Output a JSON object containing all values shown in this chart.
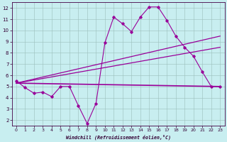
{
  "xlabel": "Windchill (Refroidissement éolien,°C)",
  "bg_color": "#c8eef0",
  "line_color": "#990099",
  "xlim": [
    -0.5,
    23.5
  ],
  "ylim": [
    1.5,
    12.5
  ],
  "xticks": [
    0,
    1,
    2,
    3,
    4,
    5,
    6,
    7,
    8,
    9,
    10,
    11,
    12,
    13,
    14,
    15,
    16,
    17,
    18,
    19,
    20,
    21,
    22,
    23
  ],
  "yticks": [
    2,
    3,
    4,
    5,
    6,
    7,
    8,
    9,
    10,
    11,
    12
  ],
  "series1_x": [
    0,
    1,
    2,
    3,
    4,
    5,
    6,
    7,
    8,
    9,
    10,
    11,
    12,
    13,
    14,
    15,
    16,
    17,
    18,
    19,
    20,
    21,
    22,
    23
  ],
  "series1_y": [
    5.5,
    4.9,
    4.4,
    4.5,
    4.1,
    5.0,
    5.0,
    3.3,
    1.7,
    3.5,
    8.9,
    11.2,
    10.6,
    9.9,
    11.2,
    12.1,
    12.1,
    10.9,
    9.5,
    8.5,
    7.7,
    6.3,
    5.0,
    5.0
  ],
  "trend1_x": [
    0,
    23
  ],
  "trend1_y": [
    5.3,
    5.0
  ],
  "trend2_x": [
    0,
    23
  ],
  "trend2_y": [
    5.3,
    9.5
  ],
  "trend3_x": [
    0,
    23
  ],
  "trend3_y": [
    5.3,
    8.5
  ]
}
